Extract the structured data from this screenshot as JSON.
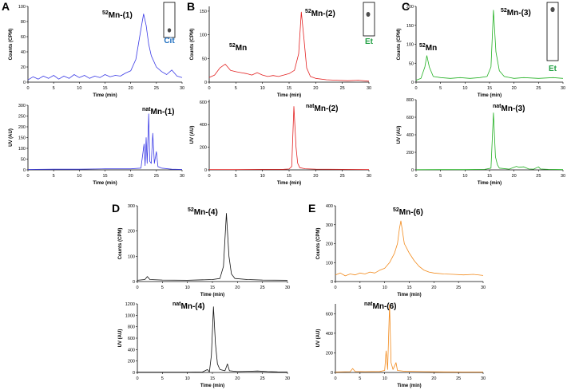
{
  "chart_data": [
    {
      "type": "line",
      "panel": "A",
      "xlabel": "Time (min)",
      "ylabel": "Counts (CPM)",
      "color": "#3b3be6",
      "annotations": [
        {
          "sup": "52",
          "text": "Mn-(1)"
        }
      ],
      "inset_label": "Cit",
      "inset_label_color": "#1f6fc0",
      "x": [
        0,
        1,
        2,
        3,
        4,
        5,
        6,
        7,
        8,
        9,
        10,
        11,
        12,
        13,
        14,
        15,
        16,
        17,
        18,
        19,
        20,
        21,
        22,
        22.5,
        23,
        23.5,
        24,
        25,
        26,
        27,
        28,
        29,
        30
      ],
      "values": [
        3,
        7,
        4,
        8,
        5,
        9,
        4,
        8,
        5,
        10,
        6,
        9,
        5,
        8,
        6,
        10,
        7,
        9,
        8,
        12,
        15,
        30,
        70,
        90,
        75,
        50,
        35,
        20,
        14,
        10,
        16,
        8,
        6
      ],
      "xlim": [
        0,
        30
      ],
      "xticks": [
        0,
        5,
        10,
        15,
        20,
        25,
        30
      ],
      "ylim": [
        0,
        100
      ],
      "yticks": [
        0,
        20,
        40,
        60,
        80,
        100
      ]
    },
    {
      "type": "line",
      "xlabel": "Time (min)",
      "ylabel": "UV (AU)",
      "color": "#3b3be6",
      "annotations": [
        {
          "sup": "nat",
          "text": "Mn-(1)"
        }
      ],
      "x": [
        0,
        5,
        10,
        15,
        20,
        22,
        22.6,
        22.8,
        23,
        23.2,
        23.5,
        23.7,
        24,
        24.3,
        24.6,
        25,
        25.3,
        26,
        28,
        30
      ],
      "values": [
        2,
        3,
        3,
        5,
        5,
        8,
        120,
        20,
        150,
        30,
        260,
        40,
        30,
        170,
        30,
        85,
        15,
        8,
        3,
        2
      ],
      "xlim": [
        0,
        30
      ],
      "xticks": [
        0,
        5,
        10,
        15,
        20,
        25,
        30
      ],
      "ylim": [
        0,
        300
      ],
      "yticks": [
        0,
        50,
        100,
        150,
        200,
        250,
        300
      ]
    },
    {
      "type": "line",
      "panel": "B",
      "xlabel": "Time (min)",
      "ylabel": "Counts (CPM)",
      "color": "#e32222",
      "annotations": [
        {
          "sup": "52",
          "text": "Mn-(2)"
        },
        {
          "sup": "52",
          "text": "Mn"
        }
      ],
      "inset_label": "Et",
      "inset_label_color": "#22a044",
      "x": [
        0,
        1,
        2,
        3,
        4,
        5,
        6,
        7,
        8,
        9,
        10,
        11,
        12,
        13,
        14,
        15,
        16,
        16.8,
        17.3,
        17.8,
        18.3,
        19,
        20,
        22,
        24,
        26,
        28,
        30
      ],
      "values": [
        10,
        15,
        30,
        38,
        25,
        22,
        20,
        18,
        15,
        20,
        15,
        12,
        14,
        12,
        15,
        18,
        25,
        60,
        148,
        90,
        30,
        12,
        8,
        5,
        4,
        3,
        4,
        2
      ],
      "xlim": [
        0,
        30
      ],
      "xticks": [
        0,
        5,
        10,
        15,
        20,
        25,
        30
      ],
      "ylim": [
        0,
        160
      ],
      "yticks": [
        0,
        50,
        100,
        150
      ]
    },
    {
      "type": "line",
      "xlabel": "Time (min)",
      "ylabel": "UV (AU)",
      "color": "#e32222",
      "annotations": [
        {
          "sup": "nat",
          "text": "Mn-(2)"
        }
      ],
      "x": [
        0,
        5,
        10,
        14,
        15,
        15.5,
        15.9,
        16.3,
        16.6,
        17,
        18,
        20,
        25,
        30
      ],
      "values": [
        3,
        3,
        4,
        5,
        8,
        30,
        560,
        200,
        60,
        20,
        10,
        6,
        4,
        3
      ],
      "xlim": [
        0,
        30
      ],
      "xticks": [
        0,
        5,
        10,
        15,
        20,
        25,
        30
      ],
      "ylim": [
        0,
        620
      ],
      "yticks": [
        0,
        200,
        400,
        600
      ]
    },
    {
      "type": "line",
      "panel": "C",
      "xlabel": "Time (min)",
      "ylabel": "Counts (CPM)",
      "color": "#22b022",
      "annotations": [
        {
          "sup": "52",
          "text": "Mn-(3)"
        },
        {
          "sup": "52",
          "text": "Mn"
        }
      ],
      "inset_label": "Et",
      "inset_label_color": "#22a044",
      "x": [
        0,
        1,
        1.8,
        2.2,
        2.7,
        3.5,
        5,
        7,
        9,
        11,
        13,
        14.5,
        15.3,
        15.8,
        16.3,
        17,
        18,
        20,
        22,
        25,
        28,
        30
      ],
      "values": [
        5,
        10,
        40,
        70,
        40,
        15,
        12,
        10,
        12,
        10,
        12,
        15,
        40,
        190,
        80,
        30,
        15,
        10,
        12,
        10,
        12,
        10
      ],
      "xlim": [
        0,
        30
      ],
      "xticks": [
        0,
        5,
        10,
        15,
        20,
        25,
        30
      ],
      "ylim": [
        0,
        200
      ],
      "yticks": [
        0,
        50,
        100,
        150,
        200
      ]
    },
    {
      "type": "line",
      "xlabel": "Time (min)",
      "ylabel": "UV (AU)",
      "color": "#22b022",
      "annotations": [
        {
          "sup": "nat",
          "text": "Mn-(3)"
        }
      ],
      "x": [
        0,
        5,
        10,
        14,
        15.3,
        15.8,
        16.2,
        16.6,
        17,
        19,
        20,
        20.5,
        21,
        22,
        23,
        24,
        25,
        25.4,
        27,
        30
      ],
      "values": [
        2,
        3,
        3,
        5,
        20,
        650,
        150,
        60,
        20,
        8,
        30,
        40,
        30,
        35,
        10,
        8,
        35,
        10,
        5,
        3
      ],
      "xlim": [
        0,
        30
      ],
      "xticks": [
        0,
        5,
        10,
        15,
        20,
        25,
        30
      ],
      "ylim": [
        0,
        800
      ],
      "yticks": [
        0,
        200,
        400,
        600,
        800
      ]
    },
    {
      "type": "line",
      "panel": "D",
      "xlabel": "Time (min)",
      "ylabel": "Counts (CPM)",
      "color": "#111111",
      "annotations": [
        {
          "sup": "52",
          "text": "Mn-(4)"
        }
      ],
      "x": [
        0,
        1.5,
        2,
        2.5,
        5,
        10,
        15,
        16.5,
        17.2,
        17.8,
        18.3,
        18.8,
        19.5,
        22,
        25,
        30
      ],
      "values": [
        5,
        8,
        20,
        8,
        6,
        5,
        8,
        12,
        60,
        270,
        100,
        30,
        12,
        8,
        6,
        5
      ],
      "xlim": [
        0,
        30
      ],
      "xticks": [
        0,
        5,
        10,
        15,
        20,
        25,
        30
      ],
      "ylim": [
        0,
        300
      ],
      "yticks": [
        0,
        100,
        200,
        300
      ]
    },
    {
      "type": "line",
      "xlabel": "Time (min)",
      "ylabel": "UV (AU)",
      "color": "#111111",
      "annotations": [
        {
          "sup": "nat",
          "text": "Mn-(4)"
        }
      ],
      "x": [
        0,
        5,
        10,
        13,
        14,
        14.4,
        14.8,
        15.2,
        15.6,
        16,
        16.5,
        17.5,
        18,
        18.4,
        20,
        22,
        24,
        26,
        28,
        30
      ],
      "values": [
        5,
        5,
        5,
        8,
        50,
        10,
        300,
        1150,
        500,
        150,
        50,
        30,
        150,
        30,
        15,
        20,
        25,
        15,
        10,
        8
      ],
      "xlim": [
        0,
        30
      ],
      "xticks": [
        0,
        5,
        10,
        15,
        20,
        25,
        30
      ],
      "ylim": [
        0,
        1200
      ],
      "yticks": [
        0,
        200,
        400,
        600,
        800,
        1000,
        1200
      ]
    },
    {
      "type": "line",
      "panel": "E",
      "xlabel": "Time (min)",
      "ylabel": "Counts (CPM)",
      "color": "#f28a1c",
      "annotations": [
        {
          "sup": "52",
          "text": "Mn-(6)"
        }
      ],
      "x": [
        0,
        1,
        2,
        3,
        4,
        5,
        6,
        7,
        8,
        9,
        10,
        11,
        12,
        12.6,
        13,
        13.3,
        13.7,
        14,
        15,
        16,
        17,
        18,
        19,
        20,
        22,
        24,
        26,
        28,
        30
      ],
      "values": [
        35,
        45,
        30,
        40,
        35,
        45,
        40,
        50,
        45,
        60,
        70,
        100,
        150,
        200,
        280,
        320,
        250,
        200,
        150,
        110,
        80,
        60,
        50,
        45,
        40,
        38,
        35,
        38,
        32
      ],
      "xlim": [
        0,
        30
      ],
      "xticks": [
        0,
        5,
        10,
        15,
        20,
        25,
        30
      ],
      "ylim": [
        0,
        400
      ],
      "yticks": [
        0,
        100,
        200,
        300,
        400
      ]
    },
    {
      "type": "line",
      "xlabel": "Time (min)",
      "ylabel": "UV (AU)",
      "color": "#f28a1c",
      "annotations": [
        {
          "sup": "nat",
          "text": "Mn-(6)"
        }
      ],
      "x": [
        0,
        3,
        3.5,
        4,
        6,
        9,
        10,
        10.3,
        10.6,
        11,
        11.3,
        11.7,
        12.3,
        12.6,
        14,
        18,
        22,
        26,
        30
      ],
      "values": [
        5,
        8,
        40,
        10,
        8,
        10,
        20,
        220,
        30,
        690,
        100,
        30,
        100,
        20,
        12,
        8,
        6,
        5,
        5
      ],
      "xlim": [
        0,
        30
      ],
      "xticks": [
        0,
        5,
        10,
        15,
        20,
        25,
        30
      ],
      "ylim": [
        0,
        700
      ],
      "yticks": [
        0,
        200,
        400,
        600
      ]
    }
  ]
}
